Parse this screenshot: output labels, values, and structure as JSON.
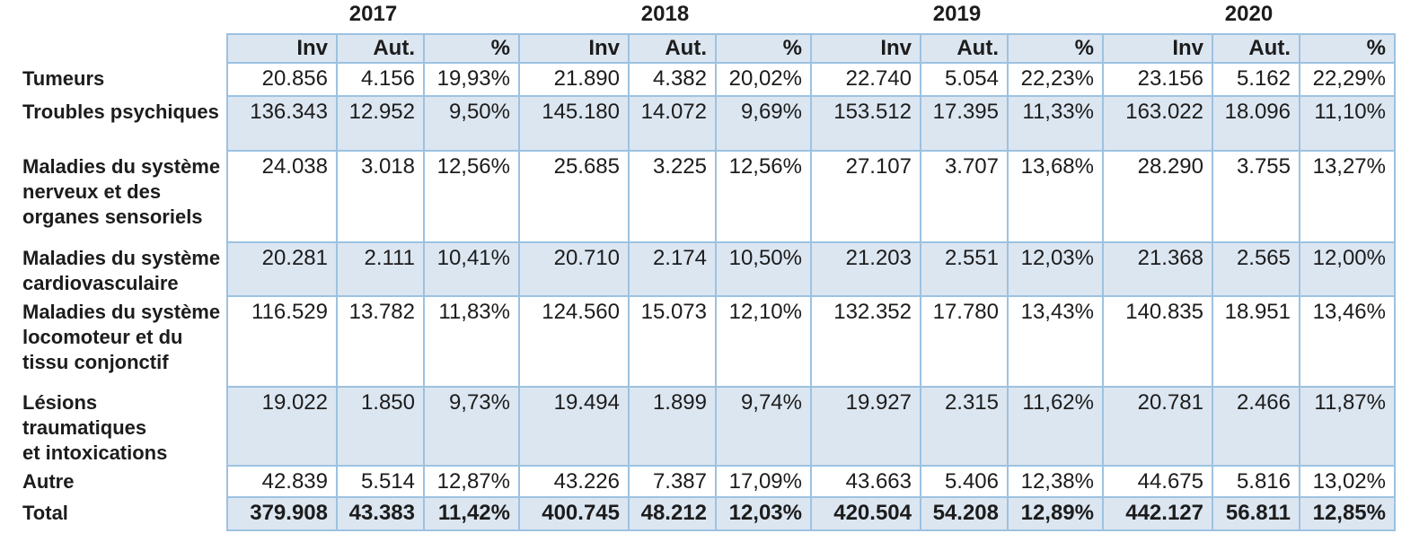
{
  "colors": {
    "band_fill": "#dce6f1",
    "border": "#9cc2e1",
    "text": "#1c1c1c",
    "row_white": "#ffffff"
  },
  "chart_data": {
    "type": "table",
    "years": [
      "2017",
      "2018",
      "2019",
      "2020"
    ],
    "measures": [
      "Inv",
      "Aut.",
      "%"
    ],
    "rows": [
      {
        "label": "Tumeurs",
        "values": [
          "20.856",
          "4.156",
          "19,93%",
          "21.890",
          "4.382",
          "20,02%",
          "22.740",
          "5.054",
          "22,23%",
          "23.156",
          "5.162",
          "22,29%"
        ]
      },
      {
        "label": "Troubles psychiques",
        "values": [
          "136.343",
          "12.952",
          "9,50%",
          "145.180",
          "14.072",
          "9,69%",
          "153.512",
          "17.395",
          "11,33%",
          "163.022",
          "18.096",
          "11,10%"
        ]
      },
      {
        "label": "Maladies du système\nnerveux et des\norganes sensoriels",
        "values": [
          "24.038",
          "3.018",
          "12,56%",
          "25.685",
          "3.225",
          "12,56%",
          "27.107",
          "3.707",
          "13,68%",
          "28.290",
          "3.755",
          "13,27%"
        ]
      },
      {
        "label": "Maladies du système\ncardiovasculaire",
        "values": [
          "20.281",
          "2.111",
          "10,41%",
          "20.710",
          "2.174",
          "10,50%",
          "21.203",
          "2.551",
          "12,03%",
          "21.368",
          "2.565",
          "12,00%"
        ]
      },
      {
        "label": "Maladies du système\nlocomoteur et du\ntissu conjonctif",
        "values": [
          "116.529",
          "13.782",
          "11,83%",
          "124.560",
          "15.073",
          "12,10%",
          "132.352",
          "17.780",
          "13,43%",
          "140.835",
          "18.951",
          "13,46%"
        ]
      },
      {
        "label": "Lésions traumatiques\net intoxications",
        "values": [
          "19.022",
          "1.850",
          "9,73%",
          "19.494",
          "1.899",
          "9,74%",
          "19.927",
          "2.315",
          "11,62%",
          "20.781",
          "2.466",
          "11,87%"
        ]
      },
      {
        "label": "Autre",
        "values": [
          "42.839",
          "5.514",
          "12,87%",
          "43.226",
          "7.387",
          "17,09%",
          "43.663",
          "5.406",
          "12,38%",
          "44.675",
          "5.816",
          "13,02%"
        ]
      },
      {
        "label": "Total",
        "is_total": true,
        "values": [
          "379.908",
          "43.383",
          "11,42%",
          "400.745",
          "48.212",
          "12,03%",
          "420.504",
          "54.208",
          "12,89%",
          "442.127",
          "56.811",
          "12,85%"
        ]
      }
    ]
  }
}
